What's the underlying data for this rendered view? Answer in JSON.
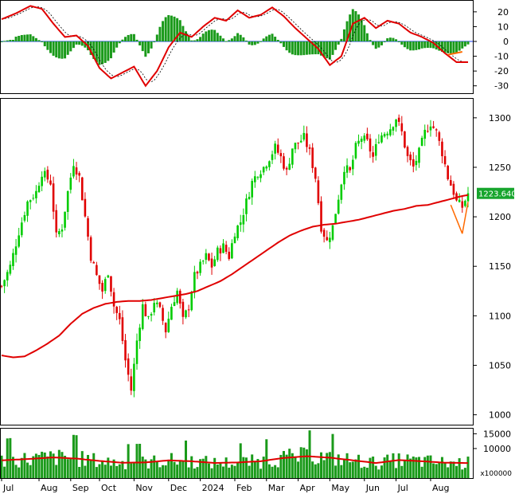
{
  "chart_data": [
    {
      "type": "bar",
      "panel": "macd",
      "yticks": [
        20,
        10,
        0,
        -10,
        -20,
        -30
      ],
      "ylim": [
        -35,
        28
      ],
      "zero_line": 0,
      "series": [
        {
          "role": "histogram",
          "color": "#1a9a1a"
        },
        {
          "role": "macd",
          "color": "#e00000"
        },
        {
          "role": "signal",
          "color": "#000000"
        },
        {
          "role": "trendline",
          "color": "#ff6a00",
          "x": [
            155,
            160
          ],
          "y": [
            -9,
            -7
          ]
        }
      ],
      "macd_approx": [
        [
          0,
          15
        ],
        [
          5,
          19
        ],
        [
          10,
          24
        ],
        [
          14,
          22
        ],
        [
          18,
          12
        ],
        [
          22,
          3
        ],
        [
          26,
          4
        ],
        [
          30,
          -3
        ],
        [
          34,
          -18
        ],
        [
          38,
          -25
        ],
        [
          42,
          -21
        ],
        [
          46,
          -17
        ],
        [
          50,
          -30
        ],
        [
          54,
          -20
        ],
        [
          58,
          -4
        ],
        [
          62,
          6
        ],
        [
          66,
          3
        ],
        [
          70,
          10
        ],
        [
          74,
          16
        ],
        [
          78,
          14
        ],
        [
          82,
          21
        ],
        [
          86,
          16
        ],
        [
          90,
          18
        ],
        [
          94,
          23
        ],
        [
          98,
          17
        ],
        [
          102,
          9
        ],
        [
          106,
          2
        ],
        [
          110,
          -5
        ],
        [
          114,
          -16
        ],
        [
          118,
          -10
        ],
        [
          122,
          12
        ],
        [
          126,
          16
        ],
        [
          130,
          9
        ],
        [
          134,
          14
        ],
        [
          138,
          12
        ],
        [
          142,
          6
        ],
        [
          146,
          3
        ],
        [
          150,
          -1
        ],
        [
          154,
          -8
        ],
        [
          158,
          -14
        ]
      ]
    },
    {
      "type": "line",
      "panel": "price",
      "ylim": [
        990,
        1320
      ],
      "yticks": [
        1000,
        1050,
        1100,
        1150,
        1200,
        1250,
        1300
      ],
      "last_value_label": "1223.640",
      "series": [
        {
          "role": "price-candles",
          "color_up": "#00cc00",
          "color_down": "#e00000"
        },
        {
          "role": "moving-average",
          "color": "#e00000"
        },
        {
          "role": "trendline",
          "color": "#ff6a00"
        }
      ],
      "price_approx": [
        [
          0,
          1130
        ],
        [
          3,
          1150
        ],
        [
          6,
          1185
        ],
        [
          9,
          1215
        ],
        [
          12,
          1225
        ],
        [
          14,
          1245
        ],
        [
          17,
          1235
        ],
        [
          19,
          1180
        ],
        [
          21,
          1190
        ],
        [
          23,
          1225
        ],
        [
          25,
          1255
        ],
        [
          27,
          1240
        ],
        [
          29,
          1200
        ],
        [
          31,
          1160
        ],
        [
          33,
          1140
        ],
        [
          35,
          1125
        ],
        [
          37,
          1145
        ],
        [
          39,
          1110
        ],
        [
          41,
          1095
        ],
        [
          43,
          1055
        ],
        [
          45,
          1025
        ],
        [
          47,
          1075
        ],
        [
          49,
          1110
        ],
        [
          51,
          1095
        ],
        [
          53,
          1115
        ],
        [
          55,
          1105
        ],
        [
          57,
          1085
        ],
        [
          59,
          1110
        ],
        [
          61,
          1125
        ],
        [
          63,
          1095
        ],
        [
          65,
          1110
        ],
        [
          67,
          1140
        ],
        [
          69,
          1150
        ],
        [
          71,
          1160
        ],
        [
          73,
          1150
        ],
        [
          75,
          1165
        ],
        [
          77,
          1170
        ],
        [
          79,
          1160
        ],
        [
          81,
          1185
        ],
        [
          83,
          1195
        ],
        [
          85,
          1215
        ],
        [
          87,
          1235
        ],
        [
          89,
          1245
        ],
        [
          91,
          1250
        ],
        [
          93,
          1260
        ],
        [
          95,
          1270
        ],
        [
          97,
          1260
        ],
        [
          99,
          1245
        ],
        [
          101,
          1270
        ],
        [
          103,
          1275
        ],
        [
          105,
          1280
        ],
        [
          107,
          1265
        ],
        [
          109,
          1240
        ],
        [
          111,
          1190
        ],
        [
          113,
          1175
        ],
        [
          115,
          1190
        ],
        [
          117,
          1220
        ],
        [
          119,
          1250
        ],
        [
          121,
          1245
        ],
        [
          123,
          1270
        ],
        [
          125,
          1280
        ],
        [
          127,
          1275
        ],
        [
          129,
          1260
        ],
        [
          131,
          1280
        ],
        [
          133,
          1285
        ],
        [
          135,
          1290
        ],
        [
          137,
          1300
        ],
        [
          139,
          1285
        ],
        [
          141,
          1260
        ],
        [
          143,
          1250
        ],
        [
          145,
          1265
        ],
        [
          147,
          1285
        ],
        [
          149,
          1295
        ],
        [
          151,
          1285
        ],
        [
          153,
          1265
        ],
        [
          155,
          1240
        ],
        [
          157,
          1225
        ],
        [
          158,
          1215
        ],
        [
          160,
          1210
        ],
        [
          162,
          1223.64
        ]
      ],
      "ma_approx": [
        [
          0,
          1060
        ],
        [
          4,
          1058
        ],
        [
          8,
          1059
        ],
        [
          12,
          1065
        ],
        [
          16,
          1072
        ],
        [
          20,
          1080
        ],
        [
          24,
          1092
        ],
        [
          28,
          1102
        ],
        [
          32,
          1108
        ],
        [
          36,
          1112
        ],
        [
          40,
          1114
        ],
        [
          44,
          1115
        ],
        [
          48,
          1115
        ],
        [
          52,
          1116
        ],
        [
          56,
          1118
        ],
        [
          60,
          1120
        ],
        [
          64,
          1122
        ],
        [
          68,
          1125
        ],
        [
          72,
          1130
        ],
        [
          76,
          1135
        ],
        [
          80,
          1142
        ],
        [
          84,
          1150
        ],
        [
          88,
          1158
        ],
        [
          92,
          1166
        ],
        [
          96,
          1174
        ],
        [
          100,
          1181
        ],
        [
          104,
          1186
        ],
        [
          108,
          1190
        ],
        [
          112,
          1192
        ],
        [
          116,
          1193
        ],
        [
          120,
          1195
        ],
        [
          124,
          1197
        ],
        [
          128,
          1200
        ],
        [
          132,
          1203
        ],
        [
          136,
          1206
        ],
        [
          140,
          1208
        ],
        [
          144,
          1211
        ],
        [
          148,
          1212
        ],
        [
          152,
          1215
        ],
        [
          156,
          1218
        ],
        [
          160,
          1221
        ],
        [
          162,
          1222
        ]
      ]
    },
    {
      "type": "bar",
      "panel": "volume",
      "yticks": [
        15000,
        10000
      ],
      "units_label": "x100000",
      "ylim": [
        0,
        17000
      ],
      "series": [
        {
          "role": "volume",
          "color": "#1a9a1a"
        },
        {
          "role": "volume-average",
          "color": "#e00000"
        }
      ],
      "volume_avg_approx": [
        [
          0,
          6000
        ],
        [
          10,
          6500
        ],
        [
          18,
          7000
        ],
        [
          26,
          6600
        ],
        [
          34,
          5800
        ],
        [
          42,
          5200
        ],
        [
          50,
          5300
        ],
        [
          58,
          6000
        ],
        [
          66,
          5700
        ],
        [
          74,
          5100
        ],
        [
          82,
          5300
        ],
        [
          90,
          5700
        ],
        [
          98,
          6800
        ],
        [
          106,
          7400
        ],
        [
          114,
          6900
        ],
        [
          122,
          6000
        ],
        [
          130,
          5100
        ],
        [
          138,
          6100
        ],
        [
          146,
          5700
        ],
        [
          154,
          5200
        ],
        [
          162,
          5100
        ]
      ]
    }
  ],
  "x_axis": {
    "months": [
      "Jul",
      "Aug",
      "Sep",
      "Oct",
      "Nov",
      "Dec",
      "2024",
      "Feb",
      "Mar",
      "Apr",
      "May",
      "Jun",
      "Jul",
      "Aug"
    ],
    "month_start_index": [
      0,
      13,
      24,
      34,
      46,
      58,
      69,
      81,
      92,
      103,
      114,
      126,
      137,
      149
    ]
  }
}
